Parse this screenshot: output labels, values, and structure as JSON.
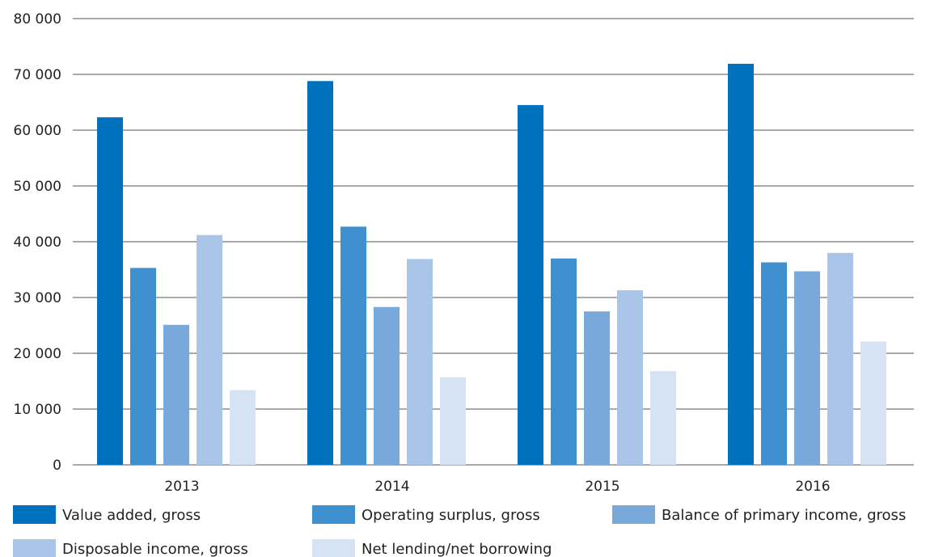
{
  "chart_data": {
    "type": "bar",
    "title": "",
    "xlabel": "",
    "ylabel": "",
    "categories": [
      "2013",
      "2014",
      "2015",
      "2016"
    ],
    "ylim": [
      0,
      80000
    ],
    "yticks": [
      0,
      10000,
      20000,
      30000,
      40000,
      50000,
      60000,
      70000,
      80000
    ],
    "ytick_labels": [
      "0",
      "10 000",
      "20 000",
      "30 000",
      "40 000",
      "50 000",
      "60 000",
      "70 000",
      "80 000"
    ],
    "grid": true,
    "legend_position": "bottom",
    "series": [
      {
        "name": "Value added, gross",
        "color": "#0071BC",
        "values": [
          62300,
          68800,
          64500,
          71900
        ]
      },
      {
        "name": "Operating surplus, gross",
        "color": "#3F90CE",
        "values": [
          35300,
          42700,
          37000,
          36300
        ]
      },
      {
        "name": "Balance of primary income, gross",
        "color": "#78A9DA",
        "values": [
          25100,
          28300,
          27500,
          34700
        ]
      },
      {
        "name": "Disposable income, gross",
        "color": "#A9C6E8",
        "values": [
          41200,
          36900,
          31300,
          38000
        ]
      },
      {
        "name": "Net lending/net borrowing",
        "color": "#D6E3F4",
        "values": [
          13400,
          15700,
          16800,
          22100
        ]
      }
    ]
  }
}
